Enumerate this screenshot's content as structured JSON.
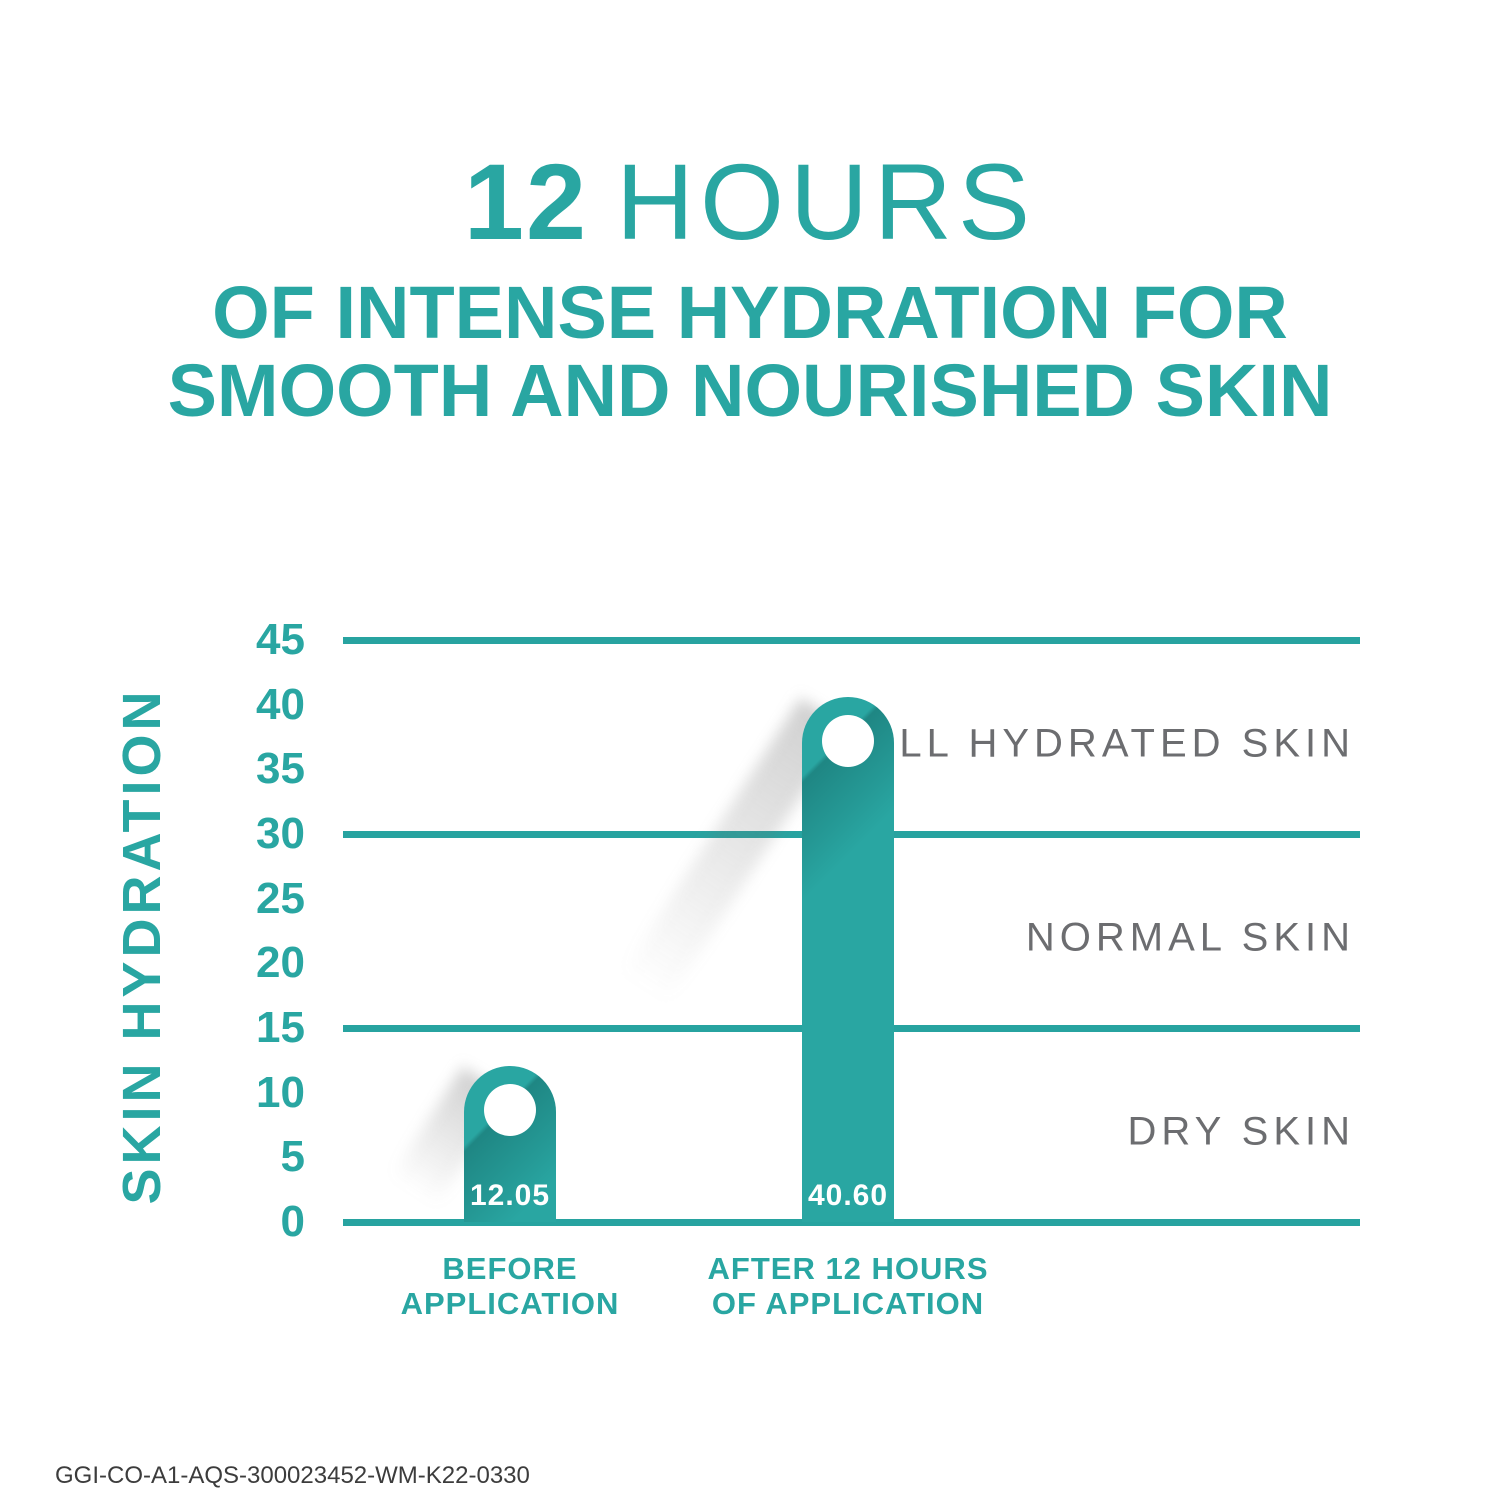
{
  "title": {
    "line1_highlight": "12",
    "line1_rest": "HOURS",
    "line2": "OF INTENSE HYDRATION FOR",
    "line3": "SMOOTH AND NOURISHED SKIN"
  },
  "footer_code": "GGI-CO-A1-AQS-300023452-WM-K22-0330",
  "colors": {
    "teal": "#29A6A2",
    "gridline_teal": "#27A3A0",
    "zone_text_gray": "#6C6D70",
    "footer_text_gray": "#3C3C3C",
    "bar_fill": "#29A6A2",
    "bar_value_text": "#FFFFFF",
    "background": "#FFFFFF"
  },
  "chart_data": {
    "type": "bar",
    "title": "12 HOURS OF INTENSE HYDRATION FOR SMOOTH AND NOURISHED SKIN",
    "xlabel": "",
    "ylabel": "SKIN HYDRATION",
    "ylim": [
      0,
      45
    ],
    "yticks": [
      45,
      40,
      35,
      30,
      25,
      20,
      15,
      10,
      5,
      0
    ],
    "gridlines_at": [
      45,
      30,
      15,
      0
    ],
    "grid": "horizontal",
    "legend": null,
    "categories": [
      "BEFORE APPLICATION",
      "AFTER 12 HOURS OF APPLICATION"
    ],
    "category_lines": [
      [
        "BEFORE",
        "APPLICATION"
      ],
      [
        "AFTER 12 HOURS",
        "OF APPLICATION"
      ]
    ],
    "values": [
      12.05,
      40.6
    ],
    "value_labels": [
      "12.05",
      "40.60"
    ],
    "zones": [
      {
        "label": "WELL HYDRATED SKIN",
        "range": [
          30,
          45
        ]
      },
      {
        "label": "NORMAL SKIN",
        "range": [
          15,
          30
        ]
      },
      {
        "label": "DRY SKIN",
        "range": [
          0,
          15
        ]
      }
    ]
  }
}
